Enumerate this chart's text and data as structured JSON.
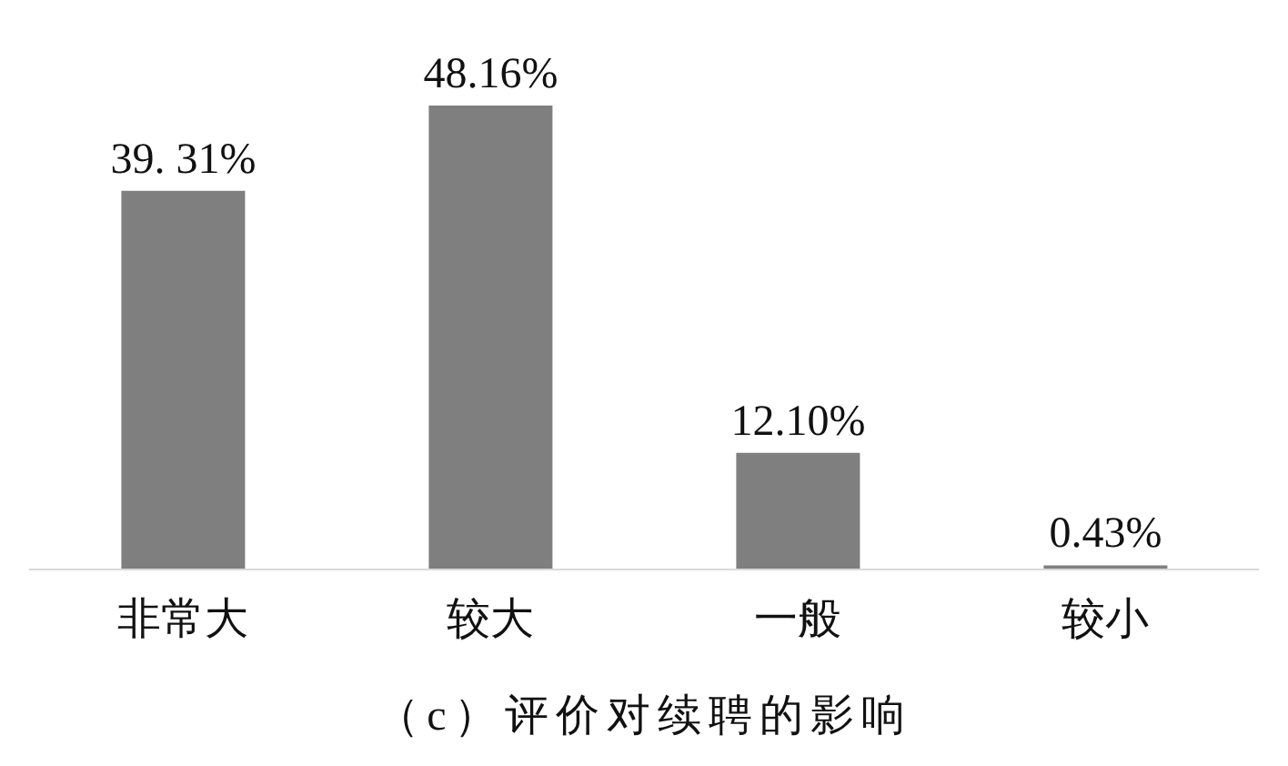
{
  "chart_data": {
    "type": "bar",
    "title": "（c）评价对续聘的影响",
    "categories": [
      "非常大",
      "较大",
      "一般",
      "较小"
    ],
    "values": [
      39.31,
      48.16,
      12.1,
      0.43
    ],
    "value_labels": [
      "39. 31%",
      "48.16%",
      "12.10%",
      "0.43%"
    ],
    "color": "#7f7f7f",
    "grid": false,
    "legend": false
  }
}
